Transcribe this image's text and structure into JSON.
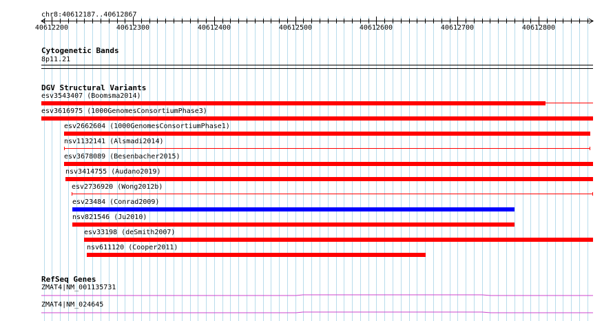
{
  "ruler": {
    "position_label": "chr8:40612187..40612867",
    "range_start": 40612187,
    "range_end": 40612867,
    "tick_labels": [
      "40612200",
      "40612300",
      "40612400",
      "40612500",
      "40612600",
      "40612700",
      "40612800"
    ]
  },
  "cytoband": {
    "title": "Cytogenetic Bands",
    "band": "8p11.21"
  },
  "dgv": {
    "title": "DGV Structural Variants",
    "features": [
      {
        "label": "esv3543407 (Boomsma2014)",
        "start": 40612187,
        "end": 40612808,
        "color": "#ff0000",
        "style": "bar"
      },
      {
        "label": "esv3616975 (1000GenomesConsortiumPhase3)",
        "start": 40612187,
        "end": 40612867,
        "color": "#ff0000",
        "style": "bar"
      },
      {
        "label": "esv2662604 (1000GenomesConsortiumPhase1)",
        "start": 40612215,
        "end": 40612864,
        "color": "#ff0000",
        "style": "bar"
      },
      {
        "label": "nsv1132141 (Alsmadi2014)",
        "start": 40612215,
        "end": 40612864,
        "color": "#ff0000",
        "style": "line"
      },
      {
        "label": "esv3678089 (Besenbacher2015)",
        "start": 40612215,
        "end": 40612867,
        "color": "#ff0000",
        "style": "bar"
      },
      {
        "label": "nsv3414755 (Audano2019)",
        "start": 40612217,
        "end": 40612867,
        "color": "#ff0000",
        "style": "bar"
      },
      {
        "label": "esv2736920 (Wong2012b)",
        "start": 40612224,
        "end": 40612867,
        "color": "#ff0000",
        "style": "line"
      },
      {
        "label": "esv23484 (Conrad2009)",
        "start": 40612225,
        "end": 40612770,
        "color": "#0000ff",
        "style": "bar"
      },
      {
        "label": "nsv821546 (Ju2010)",
        "start": 40612225,
        "end": 40612770,
        "color": "#ff0000",
        "style": "bar"
      },
      {
        "label": "esv33198 (deSmith2007)",
        "start": 40612240,
        "end": 40612867,
        "color": "#ff0000",
        "style": "bar"
      },
      {
        "label": "nsv611120 (Cooper2011)",
        "start": 40612243,
        "end": 40612661,
        "color": "#ff0000",
        "style": "bar"
      }
    ]
  },
  "refseq": {
    "title": "RefSeq Genes",
    "genes": [
      {
        "label": "ZMAT4|NM_001135731",
        "color": "#cc44cc"
      },
      {
        "label": "ZMAT4|NM_024645",
        "color": "#cc44cc"
      }
    ]
  }
}
